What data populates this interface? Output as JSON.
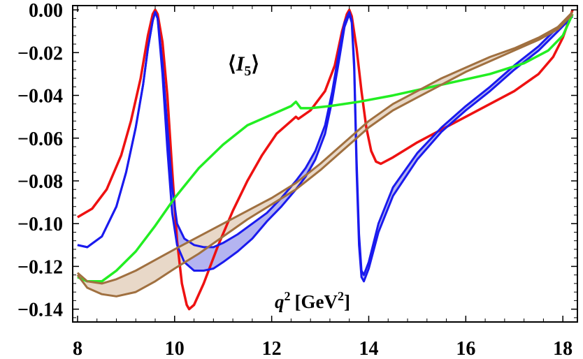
{
  "chart_data": {
    "type": "line",
    "title": "⟨I5⟩",
    "title_parts": {
      "open": "⟨",
      "symbol": "I",
      "subscript": "5",
      "close": "⟩"
    },
    "xlabel": "q² [GeV²]",
    "xlabel_parts": {
      "var": "q",
      "sup": "2",
      "open": "[GeV",
      "unit_sup": "2",
      "close": "]"
    },
    "ylabel": "",
    "xlim": [
      7.9,
      18.3
    ],
    "ylim": [
      -0.146,
      0.002
    ],
    "x_ticks": [
      8,
      10,
      12,
      14,
      16,
      18
    ],
    "x_tick_labels": [
      "8",
      "10",
      "12",
      "14",
      "16",
      "18"
    ],
    "y_ticks": [
      0.0,
      -0.02,
      -0.04,
      -0.06,
      -0.08,
      -0.1,
      -0.12,
      -0.14
    ],
    "y_tick_labels": [
      "0.00",
      "−0.02",
      "−0.04",
      "−0.06",
      "−0.08",
      "−0.10",
      "−0.12",
      "−0.14"
    ],
    "grid": false,
    "series": [
      {
        "name": "red",
        "color": "#ee1111",
        "band": false,
        "points": [
          [
            8.0,
            -0.097
          ],
          [
            8.3,
            -0.093
          ],
          [
            8.6,
            -0.084
          ],
          [
            8.9,
            -0.068
          ],
          [
            9.1,
            -0.052
          ],
          [
            9.3,
            -0.032
          ],
          [
            9.45,
            -0.012
          ],
          [
            9.55,
            -0.002
          ],
          [
            9.6,
            0.0
          ],
          [
            9.65,
            -0.002
          ],
          [
            9.75,
            -0.015
          ],
          [
            9.85,
            -0.04
          ],
          [
            9.95,
            -0.075
          ],
          [
            10.05,
            -0.108
          ],
          [
            10.15,
            -0.128
          ],
          [
            10.25,
            -0.138
          ],
          [
            10.3,
            -0.14
          ],
          [
            10.4,
            -0.138
          ],
          [
            10.6,
            -0.128
          ],
          [
            10.9,
            -0.11
          ],
          [
            11.2,
            -0.094
          ],
          [
            11.5,
            -0.08
          ],
          [
            11.8,
            -0.068
          ],
          [
            12.1,
            -0.058
          ],
          [
            12.4,
            -0.052
          ],
          [
            12.5,
            -0.05
          ],
          [
            12.55,
            -0.051
          ],
          [
            12.8,
            -0.047
          ],
          [
            13.1,
            -0.038
          ],
          [
            13.3,
            -0.026
          ],
          [
            13.45,
            -0.01
          ],
          [
            13.55,
            -0.002
          ],
          [
            13.6,
            0.0
          ],
          [
            13.65,
            -0.003
          ],
          [
            13.75,
            -0.018
          ],
          [
            13.85,
            -0.038
          ],
          [
            13.95,
            -0.055
          ],
          [
            14.05,
            -0.066
          ],
          [
            14.15,
            -0.071
          ],
          [
            14.25,
            -0.072
          ],
          [
            14.5,
            -0.069
          ],
          [
            15.0,
            -0.062
          ],
          [
            15.5,
            -0.056
          ],
          [
            16.0,
            -0.05
          ],
          [
            16.5,
            -0.044
          ],
          [
            17.0,
            -0.038
          ],
          [
            17.5,
            -0.03
          ],
          [
            17.8,
            -0.022
          ],
          [
            18.0,
            -0.013
          ],
          [
            18.2,
            0.0
          ]
        ]
      },
      {
        "name": "blue",
        "color": "#1a1aee",
        "band": true,
        "fill": "#b4b4f0",
        "upper": [
          [
            8.0,
            -0.11
          ],
          [
            8.2,
            -0.111
          ],
          [
            8.5,
            -0.106
          ],
          [
            8.8,
            -0.092
          ],
          [
            9.0,
            -0.076
          ],
          [
            9.2,
            -0.055
          ],
          [
            9.35,
            -0.035
          ],
          [
            9.45,
            -0.018
          ],
          [
            9.55,
            -0.005
          ],
          [
            9.6,
            -0.001
          ],
          [
            9.65,
            -0.004
          ],
          [
            9.75,
            -0.025
          ],
          [
            9.85,
            -0.055
          ],
          [
            9.95,
            -0.083
          ],
          [
            10.05,
            -0.1
          ],
          [
            10.2,
            -0.107
          ],
          [
            10.4,
            -0.11
          ],
          [
            10.6,
            -0.111
          ],
          [
            10.8,
            -0.111
          ],
          [
            11.0,
            -0.109
          ],
          [
            11.3,
            -0.105
          ],
          [
            11.6,
            -0.1
          ],
          [
            11.9,
            -0.095
          ],
          [
            12.2,
            -0.088
          ],
          [
            12.5,
            -0.08
          ],
          [
            12.7,
            -0.074
          ],
          [
            12.9,
            -0.066
          ],
          [
            13.1,
            -0.054
          ],
          [
            13.25,
            -0.038
          ],
          [
            13.4,
            -0.018
          ],
          [
            13.5,
            -0.006
          ],
          [
            13.6,
            -0.001
          ],
          [
            13.65,
            -0.005
          ],
          [
            13.7,
            -0.025
          ],
          [
            13.75,
            -0.07
          ],
          [
            13.8,
            -0.105
          ],
          [
            13.85,
            -0.122
          ],
          [
            13.9,
            -0.124
          ],
          [
            14.0,
            -0.118
          ],
          [
            14.2,
            -0.1
          ],
          [
            14.5,
            -0.083
          ],
          [
            15.0,
            -0.067
          ],
          [
            15.5,
            -0.055
          ],
          [
            16.0,
            -0.045
          ],
          [
            16.5,
            -0.036
          ],
          [
            17.0,
            -0.026
          ],
          [
            17.5,
            -0.017
          ],
          [
            17.9,
            -0.008
          ],
          [
            18.2,
            -0.002
          ]
        ],
        "lower": [
          [
            8.0,
            -0.11
          ],
          [
            8.2,
            -0.111
          ],
          [
            8.5,
            -0.106
          ],
          [
            8.8,
            -0.092
          ],
          [
            9.0,
            -0.076
          ],
          [
            9.2,
            -0.055
          ],
          [
            9.35,
            -0.035
          ],
          [
            9.45,
            -0.018
          ],
          [
            9.55,
            -0.005
          ],
          [
            9.6,
            -0.001
          ],
          [
            9.65,
            -0.004
          ],
          [
            9.75,
            -0.03
          ],
          [
            9.85,
            -0.065
          ],
          [
            9.95,
            -0.095
          ],
          [
            10.05,
            -0.11
          ],
          [
            10.2,
            -0.118
          ],
          [
            10.4,
            -0.122
          ],
          [
            10.6,
            -0.122
          ],
          [
            10.8,
            -0.121
          ],
          [
            11.0,
            -0.118
          ],
          [
            11.3,
            -0.113
          ],
          [
            11.6,
            -0.107
          ],
          [
            11.9,
            -0.099
          ],
          [
            12.2,
            -0.092
          ],
          [
            12.5,
            -0.084
          ],
          [
            12.7,
            -0.078
          ],
          [
            12.9,
            -0.07
          ],
          [
            13.1,
            -0.058
          ],
          [
            13.25,
            -0.042
          ],
          [
            13.4,
            -0.022
          ],
          [
            13.5,
            -0.008
          ],
          [
            13.6,
            -0.002
          ],
          [
            13.65,
            -0.006
          ],
          [
            13.7,
            -0.028
          ],
          [
            13.75,
            -0.075
          ],
          [
            13.8,
            -0.11
          ],
          [
            13.85,
            -0.125
          ],
          [
            13.9,
            -0.127
          ],
          [
            14.0,
            -0.121
          ],
          [
            14.2,
            -0.104
          ],
          [
            14.5,
            -0.087
          ],
          [
            15.0,
            -0.07
          ],
          [
            15.5,
            -0.057
          ],
          [
            16.0,
            -0.047
          ],
          [
            16.5,
            -0.038
          ],
          [
            17.0,
            -0.028
          ],
          [
            17.5,
            -0.019
          ],
          [
            17.9,
            -0.01
          ],
          [
            18.2,
            -0.003
          ]
        ]
      },
      {
        "name": "green",
        "color": "#22ee22",
        "band": false,
        "points": [
          [
            8.0,
            -0.125
          ],
          [
            8.2,
            -0.127
          ],
          [
            8.5,
            -0.127
          ],
          [
            8.8,
            -0.122
          ],
          [
            9.2,
            -0.113
          ],
          [
            9.6,
            -0.101
          ],
          [
            10.0,
            -0.088
          ],
          [
            10.5,
            -0.074
          ],
          [
            11.0,
            -0.063
          ],
          [
            11.5,
            -0.054
          ],
          [
            12.0,
            -0.049
          ],
          [
            12.4,
            -0.045
          ],
          [
            12.5,
            -0.043
          ],
          [
            12.6,
            -0.046
          ],
          [
            12.8,
            -0.046
          ],
          [
            13.2,
            -0.045
          ],
          [
            13.8,
            -0.043
          ],
          [
            14.5,
            -0.04
          ],
          [
            15.5,
            -0.035
          ],
          [
            16.5,
            -0.03
          ],
          [
            17.2,
            -0.025
          ],
          [
            17.7,
            -0.019
          ],
          [
            18.0,
            -0.012
          ],
          [
            18.2,
            -0.002
          ]
        ]
      },
      {
        "name": "brown",
        "color": "#a07040",
        "band": true,
        "fill": "#e8d8c8",
        "upper": [
          [
            8.0,
            -0.123
          ],
          [
            8.2,
            -0.127
          ],
          [
            8.5,
            -0.128
          ],
          [
            8.8,
            -0.126
          ],
          [
            9.2,
            -0.122
          ],
          [
            9.6,
            -0.117
          ],
          [
            10.0,
            -0.112
          ],
          [
            10.5,
            -0.106
          ],
          [
            11.0,
            -0.1
          ],
          [
            11.5,
            -0.094
          ],
          [
            12.0,
            -0.088
          ],
          [
            12.5,
            -0.081
          ],
          [
            13.0,
            -0.072
          ],
          [
            13.5,
            -0.062
          ],
          [
            14.0,
            -0.052
          ],
          [
            14.5,
            -0.044
          ],
          [
            15.0,
            -0.038
          ],
          [
            15.5,
            -0.032
          ],
          [
            16.0,
            -0.027
          ],
          [
            16.5,
            -0.022
          ],
          [
            17.0,
            -0.018
          ],
          [
            17.5,
            -0.013
          ],
          [
            17.9,
            -0.008
          ],
          [
            18.2,
            -0.001
          ]
        ],
        "lower": [
          [
            8.0,
            -0.124
          ],
          [
            8.2,
            -0.13
          ],
          [
            8.5,
            -0.133
          ],
          [
            8.8,
            -0.134
          ],
          [
            9.2,
            -0.132
          ],
          [
            9.6,
            -0.127
          ],
          [
            10.0,
            -0.121
          ],
          [
            10.5,
            -0.114
          ],
          [
            11.0,
            -0.106
          ],
          [
            11.5,
            -0.098
          ],
          [
            12.0,
            -0.091
          ],
          [
            12.5,
            -0.084
          ],
          [
            13.0,
            -0.075
          ],
          [
            13.5,
            -0.065
          ],
          [
            14.0,
            -0.055
          ],
          [
            14.5,
            -0.047
          ],
          [
            15.0,
            -0.041
          ],
          [
            15.5,
            -0.035
          ],
          [
            16.0,
            -0.029
          ],
          [
            16.5,
            -0.024
          ],
          [
            17.0,
            -0.019
          ],
          [
            17.5,
            -0.014
          ],
          [
            17.9,
            -0.009
          ],
          [
            18.2,
            -0.002
          ]
        ]
      }
    ]
  }
}
